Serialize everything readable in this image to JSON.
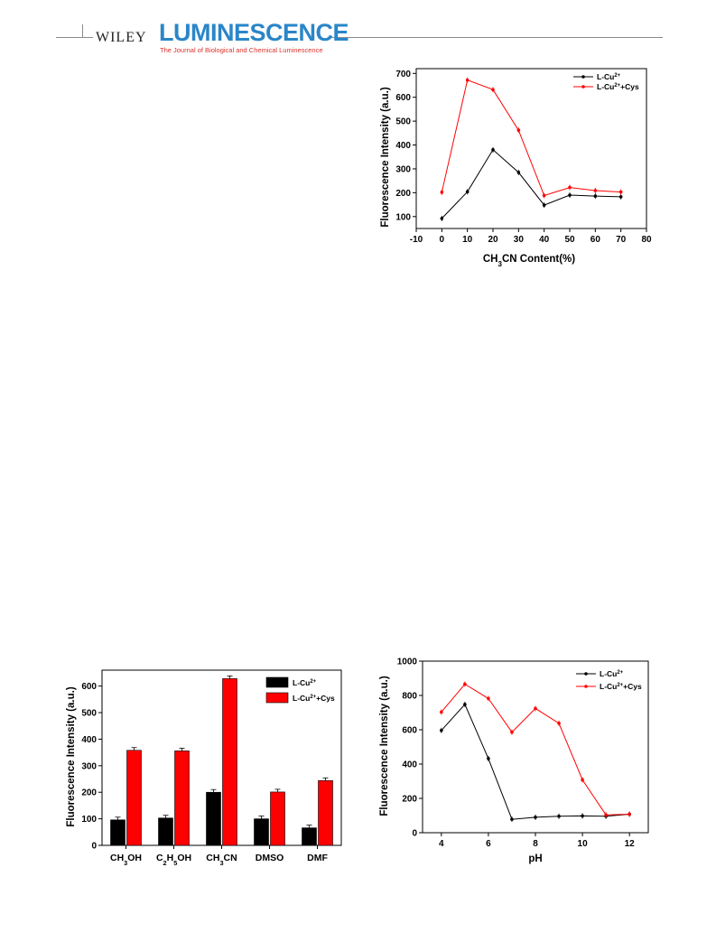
{
  "header": {
    "publisher": "WILEY",
    "journal": "LUMINESCENCE",
    "subtitle": "The Journal of Biological and Chemical Luminescence"
  },
  "colors": {
    "series1": "#000000",
    "series2": "#ff0000"
  },
  "chart_data": [
    {
      "type": "line",
      "xlabel": "CH3CN Content(%)",
      "ylabel": "Fluorescence Intensity (a.u.)",
      "xlim": [
        -10,
        80
      ],
      "ylim": [
        50,
        720
      ],
      "xticks": [
        -10,
        0,
        10,
        20,
        30,
        40,
        50,
        60,
        70,
        80
      ],
      "yticks": [
        100,
        200,
        300,
        400,
        500,
        600,
        700
      ],
      "x": [
        0,
        10,
        20,
        30,
        40,
        50,
        60,
        70
      ],
      "series": [
        {
          "name": "L-Cu2+",
          "values": [
            92,
            204,
            380,
            285,
            148,
            190,
            186,
            183
          ]
        },
        {
          "name": "L-Cu2++Cys",
          "values": [
            202,
            672,
            632,
            462,
            188,
            222,
            209,
            203
          ]
        }
      ],
      "legend": "top-right"
    },
    {
      "type": "bar",
      "xlabel": "",
      "ylabel": "Fluorescence Intensity (a.u.)",
      "ylim": [
        0,
        660
      ],
      "yticks": [
        0,
        100,
        200,
        300,
        400,
        500,
        600
      ],
      "categories": [
        "CH3OH",
        "C2H5OH",
        "CH3CN",
        "DMSO",
        "DMF"
      ],
      "series": [
        {
          "name": "L-Cu2+",
          "values": [
            96,
            103,
            200,
            100,
            66
          ]
        },
        {
          "name": "L-Cu2++Cys",
          "values": [
            358,
            356,
            628,
            201,
            244
          ]
        }
      ],
      "legend": "top-right"
    },
    {
      "type": "line",
      "xlabel": "pH",
      "ylabel": "Fluorescence Intensity (a.u.)",
      "xlim": [
        3.2,
        12.8
      ],
      "ylim": [
        0,
        1000
      ],
      "xticks": [
        4,
        6,
        8,
        10,
        12
      ],
      "yticks": [
        0,
        200,
        400,
        600,
        800,
        1000
      ],
      "x": [
        4,
        5,
        6,
        7,
        8,
        9,
        10,
        11,
        12
      ],
      "series": [
        {
          "name": "L-Cu2+",
          "values": [
            596,
            748,
            432,
            78,
            90,
            96,
            98,
            96,
            108
          ]
        },
        {
          "name": "L-Cu2++Cys",
          "values": [
            703,
            866,
            782,
            586,
            724,
            638,
            308,
            104,
            108
          ]
        }
      ],
      "legend": "top-right"
    }
  ]
}
